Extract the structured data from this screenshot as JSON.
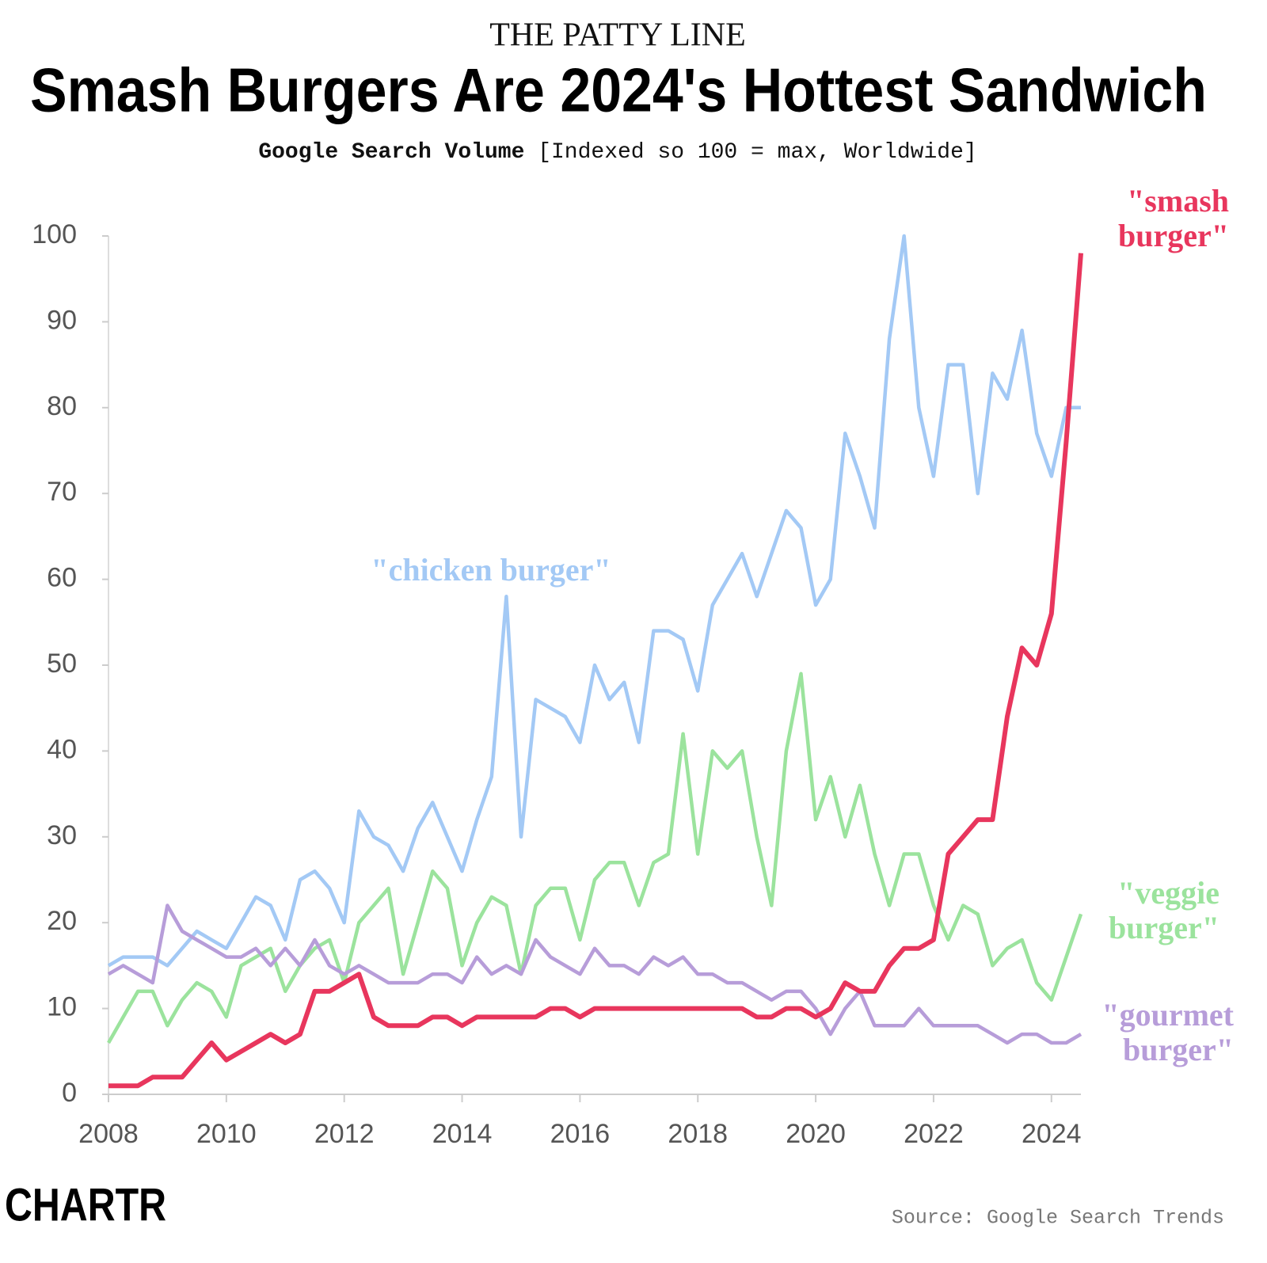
{
  "chart_data": {
    "type": "line",
    "kicker": "THE PATTY LINE",
    "title": "Smash Burgers Are 2024's Hottest Sandwich",
    "subtitle_bold": "Google Search Volume",
    "subtitle": "[Indexed so 100 = max, Worldwide]",
    "source": "Source: Google Search Trends",
    "logo": "CHARTR",
    "x": [
      2008,
      2008.25,
      2008.5,
      2008.75,
      2009,
      2009.25,
      2009.5,
      2009.75,
      2010,
      2010.25,
      2010.5,
      2010.75,
      2011,
      2011.25,
      2011.5,
      2011.75,
      2012,
      2012.25,
      2012.5,
      2012.75,
      2013,
      2013.25,
      2013.5,
      2013.75,
      2014,
      2014.25,
      2014.5,
      2014.75,
      2015,
      2015.25,
      2015.5,
      2015.75,
      2016,
      2016.25,
      2016.5,
      2016.75,
      2017,
      2017.25,
      2017.5,
      2017.75,
      2018,
      2018.25,
      2018.5,
      2018.75,
      2019,
      2019.25,
      2019.5,
      2019.75,
      2020,
      2020.25,
      2020.5,
      2020.75,
      2021,
      2021.25,
      2021.5,
      2021.75,
      2022,
      2022.25,
      2022.5,
      2022.75,
      2023,
      2023.25,
      2023.5,
      2023.75,
      2024,
      2024.25,
      2024.5
    ],
    "series": [
      {
        "name": "\"chicken burger\"",
        "color": "#a3c9f5",
        "values": [
          15,
          16,
          16,
          16,
          15,
          17,
          19,
          18,
          17,
          20,
          23,
          22,
          18,
          25,
          26,
          24,
          20,
          33,
          30,
          29,
          26,
          31,
          34,
          30,
          26,
          32,
          37,
          58,
          30,
          46,
          45,
          44,
          41,
          50,
          46,
          48,
          41,
          54,
          54,
          53,
          47,
          57,
          60,
          63,
          58,
          63,
          68,
          66,
          57,
          60,
          77,
          72,
          66,
          88,
          100,
          80,
          72,
          85,
          85,
          70,
          84,
          81,
          89,
          77,
          72,
          80,
          80
        ]
      },
      {
        "name": "\"veggie burger\"",
        "color": "#9be39d",
        "values": [
          6,
          9,
          12,
          12,
          8,
          11,
          13,
          12,
          9,
          15,
          16,
          17,
          12,
          15,
          17,
          18,
          13,
          20,
          22,
          24,
          14,
          20,
          26,
          24,
          15,
          20,
          23,
          22,
          14,
          22,
          24,
          24,
          18,
          25,
          27,
          27,
          22,
          27,
          28,
          42,
          28,
          40,
          38,
          40,
          30,
          22,
          40,
          49,
          32,
          37,
          30,
          36,
          28,
          22,
          28,
          28,
          22,
          18,
          22,
          21,
          15,
          17,
          18,
          13,
          11,
          16,
          21
        ]
      },
      {
        "name": "\"gourmet burger\"",
        "color": "#b79dd9",
        "values": [
          14,
          15,
          14,
          13,
          22,
          19,
          18,
          17,
          16,
          16,
          17,
          15,
          17,
          15,
          18,
          15,
          14,
          15,
          14,
          13,
          13,
          13,
          14,
          14,
          13,
          16,
          14,
          15,
          14,
          18,
          16,
          15,
          14,
          17,
          15,
          15,
          14,
          16,
          15,
          16,
          14,
          14,
          13,
          13,
          12,
          11,
          12,
          12,
          10,
          7,
          10,
          12,
          8,
          8,
          8,
          10,
          8,
          8,
          8,
          8,
          7,
          6,
          7,
          7,
          6,
          6,
          7
        ]
      },
      {
        "name": "\"smash burger\"",
        "color": "#e8365d",
        "values": [
          1,
          1,
          1,
          2,
          2,
          2,
          4,
          6,
          4,
          5,
          6,
          7,
          6,
          7,
          12,
          12,
          13,
          14,
          9,
          8,
          8,
          8,
          9,
          9,
          8,
          9,
          9,
          9,
          9,
          9,
          10,
          10,
          9,
          10,
          10,
          10,
          10,
          10,
          10,
          10,
          10,
          10,
          10,
          10,
          9,
          9,
          10,
          10,
          9,
          10,
          13,
          12,
          12,
          15,
          17,
          17,
          18,
          28,
          30,
          32,
          32,
          44,
          52,
          50,
          56,
          76,
          98
        ]
      }
    ],
    "xlim": [
      2008,
      2024.5
    ],
    "xticks": [
      2008,
      2010,
      2012,
      2014,
      2016,
      2018,
      2020,
      2022,
      2024
    ],
    "ylim": [
      0,
      100
    ],
    "yticks": [
      0,
      10,
      20,
      30,
      40,
      50,
      60,
      70,
      80,
      90,
      100
    ]
  }
}
